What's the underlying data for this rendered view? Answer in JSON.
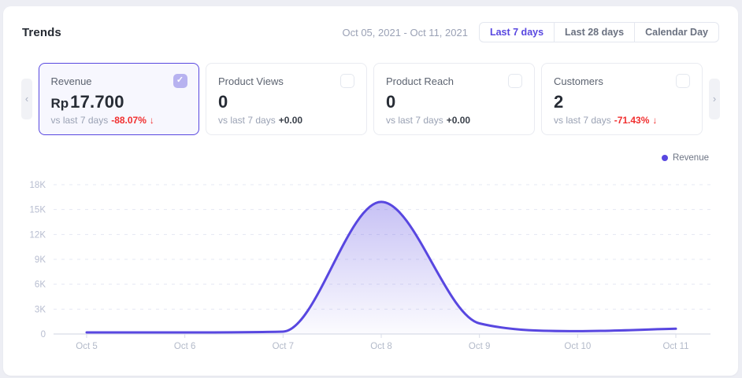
{
  "theme": {
    "accent": "#5847e0",
    "accent_light": "#b7b2f0",
    "negative": "#f12f2f"
  },
  "header": {
    "title": "Trends",
    "date_range": "Oct 05, 2021 - Oct 11, 2021",
    "range_buttons": [
      {
        "label": "Last 7 days",
        "active": true
      },
      {
        "label": "Last 28 days",
        "active": false
      },
      {
        "label": "Calendar Day",
        "active": false
      }
    ]
  },
  "carousel": {
    "prev": "‹",
    "next": "›"
  },
  "icons": {
    "check": "✓"
  },
  "cards": [
    {
      "title": "Revenue",
      "currency_prefix": "Rp",
      "value": "17.700",
      "vs_label": "vs last 7 days",
      "delta": "-88.07%",
      "arrow": "↓",
      "checked": true
    },
    {
      "title": "Product Views",
      "value": "0",
      "vs_label": "vs last 7 days",
      "delta": "+0.00",
      "checked": false
    },
    {
      "title": "Product Reach",
      "value": "0",
      "vs_label": "vs last 7 days",
      "delta": "+0.00",
      "checked": false
    },
    {
      "title": "Customers",
      "value": "2",
      "vs_label": "vs last 7 days",
      "delta": "-71.43%",
      "arrow": "↓",
      "checked": false
    }
  ],
  "legend": {
    "label": "Revenue"
  },
  "chart_data": {
    "type": "area",
    "title": "Revenue trend, Oct 05 2021 - Oct 11 2021",
    "categories": [
      "Oct 5",
      "Oct 6",
      "Oct 7",
      "Oct 8",
      "Oct 9",
      "Oct 10",
      "Oct 11"
    ],
    "series": [
      {
        "name": "Revenue",
        "values": [
          0,
          0,
          100,
          15900,
          1100,
          150,
          450
        ]
      }
    ],
    "ylim": [
      0,
      18000
    ],
    "yticks": [
      0,
      3000,
      6000,
      9000,
      12000,
      15000,
      18000
    ],
    "ytick_labels": [
      "0",
      "3K",
      "6K",
      "9K",
      "12K",
      "15K",
      "18K"
    ],
    "grid": "dashed-horizontal",
    "legend_position": "top-right",
    "line_color": "#5847e0",
    "fill": "purple-gradient-fade",
    "xlabel": "",
    "ylabel": ""
  }
}
